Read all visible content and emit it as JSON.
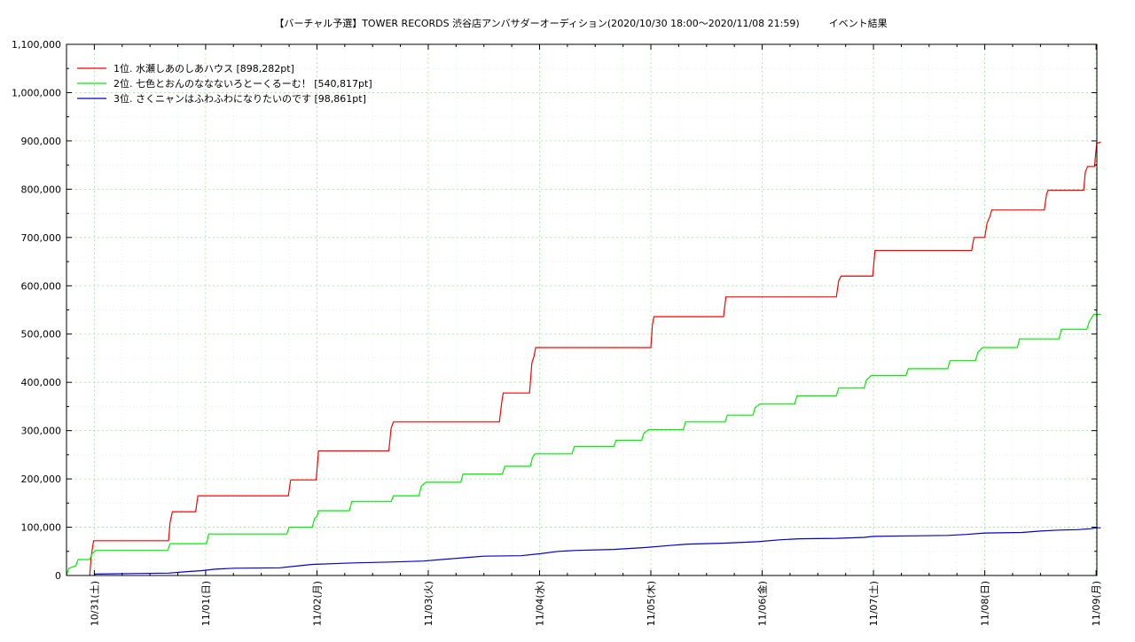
{
  "chart_data": {
    "type": "line",
    "title": "【バーチャル予選】TOWER RECORDS 渋谷店アンバサダーオーディション(2020/10/30 18:00〜2020/11/08 21:59)　　　イベント結果",
    "xlabel": "",
    "ylabel": "",
    "ylim": [
      0,
      1100000
    ],
    "xlim": [
      "2020/10/30 18:00",
      "2020/11/09 00:10"
    ],
    "grid": true,
    "legend_position": "top-left",
    "y_ticks": [
      "0",
      "100,000",
      "200,000",
      "300,000",
      "400,000",
      "500,000",
      "600,000",
      "700,000",
      "800,000",
      "900,000",
      "1,000,000",
      "1,100,000"
    ],
    "x_ticks": [
      {
        "date": "2020/10/31 00:00",
        "label": "10/31(土)"
      },
      {
        "date": "2020/11/01 00:00",
        "label": "11/01(日)"
      },
      {
        "date": "2020/11/02 00:00",
        "label": "11/02(月)"
      },
      {
        "date": "2020/11/03 00:00",
        "label": "11/03(火)"
      },
      {
        "date": "2020/11/04 00:00",
        "label": "11/04(水)"
      },
      {
        "date": "2020/11/05 00:00",
        "label": "11/05(木)"
      },
      {
        "date": "2020/11/06 00:00",
        "label": "11/06(金)"
      },
      {
        "date": "2020/11/07 00:00",
        "label": "11/07(土)"
      },
      {
        "date": "2020/11/08 00:00",
        "label": "11/08(日)"
      },
      {
        "date": "2020/11/09 00:00",
        "label": "11/09(月)"
      }
    ],
    "series": [
      {
        "name": "1位. 水瀬しあのしあハウス [898,282pt]",
        "color": "#ff0000",
        "points": [
          [
            "2020/10/30 23:00",
            0
          ],
          [
            "2020/10/30 23:20",
            40000
          ],
          [
            "2020/10/30 23:50",
            72000
          ],
          [
            "2020/10/31 16:00",
            72000
          ],
          [
            "2020/10/31 16:20",
            110000
          ],
          [
            "2020/10/31 16:50",
            132000
          ],
          [
            "2020/10/31 21:50",
            132000
          ],
          [
            "2020/10/31 22:20",
            165000
          ],
          [
            "2020/11/01 17:50",
            165000
          ],
          [
            "2020/11/01 18:20",
            198000
          ],
          [
            "2020/11/01 23:50",
            198000
          ],
          [
            "2020/11/02 00:20",
            258000
          ],
          [
            "2020/11/02 15:30",
            258000
          ],
          [
            "2020/11/02 16:00",
            305000
          ],
          [
            "2020/11/02 16:30",
            318000
          ],
          [
            "2020/11/03 15:20",
            318000
          ],
          [
            "2020/11/03 15:50",
            358000
          ],
          [
            "2020/11/03 16:10",
            378000
          ],
          [
            "2020/11/03 21:50",
            378000
          ],
          [
            "2020/11/03 22:20",
            440000
          ],
          [
            "2020/11/03 22:50",
            455000
          ],
          [
            "2020/11/03 23:10",
            472000
          ],
          [
            "2020/11/05 00:00",
            472000
          ],
          [
            "2020/11/05 00:20",
            520000
          ],
          [
            "2020/11/05 00:40",
            536000
          ],
          [
            "2020/11/05 15:40",
            536000
          ],
          [
            "2020/11/05 16:10",
            577000
          ],
          [
            "2020/11/06 16:00",
            577000
          ],
          [
            "2020/11/06 16:30",
            610000
          ],
          [
            "2020/11/06 17:00",
            620000
          ],
          [
            "2020/11/06 23:50",
            620000
          ],
          [
            "2020/11/07 00:20",
            673000
          ],
          [
            "2020/11/07 21:10",
            673000
          ],
          [
            "2020/11/07 21:40",
            700000
          ],
          [
            "2020/11/08 00:00",
            700000
          ],
          [
            "2020/11/08 00:30",
            730000
          ],
          [
            "2020/11/08 01:10",
            745000
          ],
          [
            "2020/11/08 01:30",
            757000
          ],
          [
            "2020/11/08 12:50",
            757000
          ],
          [
            "2020/11/08 13:20",
            790000
          ],
          [
            "2020/11/08 13:40",
            798000
          ],
          [
            "2020/11/08 21:20",
            798000
          ],
          [
            "2020/11/08 21:40",
            835000
          ],
          [
            "2020/11/08 22:10",
            847000
          ],
          [
            "2020/11/08 23:40",
            847000
          ],
          [
            "2020/11/08 23:55",
            875000
          ],
          [
            "2020/11/09 00:10",
            896000
          ],
          [
            "2020/11/09 00:40",
            896000
          ],
          [
            "2020/11/09 01:00",
            898282
          ]
        ]
      },
      {
        "name": "2位. 七色とおんのななないろとーくるーむ！ [540,817pt]",
        "color": "#00ee00",
        "points": [
          [
            "2020/10/30 18:00",
            0
          ],
          [
            "2020/10/30 18:30",
            15000
          ],
          [
            "2020/10/30 20:00",
            20000
          ],
          [
            "2020/10/30 20:30",
            33000
          ],
          [
            "2020/10/30 23:00",
            33000
          ],
          [
            "2020/10/30 23:30",
            45000
          ],
          [
            "2020/10/31 00:20",
            52000
          ],
          [
            "2020/10/31 15:50",
            52000
          ],
          [
            "2020/10/31 16:20",
            66000
          ],
          [
            "2020/11/01 00:10",
            66000
          ],
          [
            "2020/11/01 00:40",
            86000
          ],
          [
            "2020/11/01 17:30",
            86000
          ],
          [
            "2020/11/01 18:00",
            100000
          ],
          [
            "2020/11/01 23:00",
            100000
          ],
          [
            "2020/11/01 23:30",
            118000
          ],
          [
            "2020/11/02 00:00",
            122000
          ],
          [
            "2020/11/02 00:20",
            134000
          ],
          [
            "2020/11/02 07:00",
            134000
          ],
          [
            "2020/11/02 07:30",
            153000
          ],
          [
            "2020/11/02 16:00",
            153000
          ],
          [
            "2020/11/02 16:30",
            165000
          ],
          [
            "2020/11/02 22:00",
            165000
          ],
          [
            "2020/11/02 22:30",
            185000
          ],
          [
            "2020/11/02 23:30",
            193000
          ],
          [
            "2020/11/03 07:00",
            193000
          ],
          [
            "2020/11/03 07:30",
            210000
          ],
          [
            "2020/11/03 16:00",
            210000
          ],
          [
            "2020/11/03 16:30",
            226000
          ],
          [
            "2020/11/03 22:00",
            226000
          ],
          [
            "2020/11/03 22:30",
            245000
          ],
          [
            "2020/11/03 23:00",
            252000
          ],
          [
            "2020/11/04 07:00",
            252000
          ],
          [
            "2020/11/04 07:30",
            267000
          ],
          [
            "2020/11/04 16:00",
            267000
          ],
          [
            "2020/11/04 16:30",
            280000
          ],
          [
            "2020/11/04 22:00",
            280000
          ],
          [
            "2020/11/04 22:30",
            295000
          ],
          [
            "2020/11/04 23:30",
            302000
          ],
          [
            "2020/11/05 07:00",
            302000
          ],
          [
            "2020/11/05 07:30",
            318000
          ],
          [
            "2020/11/05 16:00",
            318000
          ],
          [
            "2020/11/05 16:30",
            332000
          ],
          [
            "2020/11/05 22:00",
            332000
          ],
          [
            "2020/11/05 22:30",
            348000
          ],
          [
            "2020/11/05 23:30",
            355000
          ],
          [
            "2020/11/06 07:00",
            355000
          ],
          [
            "2020/11/06 07:30",
            372000
          ],
          [
            "2020/11/06 16:00",
            372000
          ],
          [
            "2020/11/06 16:30",
            388000
          ],
          [
            "2020/11/06 22:00",
            388000
          ],
          [
            "2020/11/06 22:30",
            405000
          ],
          [
            "2020/11/06 23:30",
            414000
          ],
          [
            "2020/11/07 07:00",
            414000
          ],
          [
            "2020/11/07 07:30",
            428000
          ],
          [
            "2020/11/07 16:00",
            428000
          ],
          [
            "2020/11/07 16:30",
            445000
          ],
          [
            "2020/11/07 22:00",
            445000
          ],
          [
            "2020/11/07 22:30",
            462000
          ],
          [
            "2020/11/07 23:30",
            472000
          ],
          [
            "2020/11/08 07:00",
            472000
          ],
          [
            "2020/11/08 07:30",
            490000
          ],
          [
            "2020/11/08 16:00",
            490000
          ],
          [
            "2020/11/08 16:30",
            510000
          ],
          [
            "2020/11/08 22:00",
            510000
          ],
          [
            "2020/11/08 22:30",
            525000
          ],
          [
            "2020/11/08 23:30",
            540817
          ],
          [
            "2020/11/09 01:00",
            540817
          ]
        ]
      },
      {
        "name": "3位. さくニャンはふわふわになりたいのです [98,861pt]",
        "color": "#0000cc",
        "points": [
          [
            "2020/10/31 00:00",
            0
          ],
          [
            "2020/10/31 00:10",
            3000
          ],
          [
            "2020/10/31 08:00",
            4000
          ],
          [
            "2020/10/31 16:00",
            5000
          ],
          [
            "2020/10/31 20:00",
            8000
          ],
          [
            "2020/10/31 23:00",
            10000
          ],
          [
            "2020/11/01 02:00",
            13000
          ],
          [
            "2020/11/01 06:00",
            15000
          ],
          [
            "2020/11/01 16:00",
            16000
          ],
          [
            "2020/11/01 20:00",
            20000
          ],
          [
            "2020/11/01 23:00",
            23000
          ],
          [
            "2020/11/02 08:00",
            26000
          ],
          [
            "2020/11/02 16:00",
            28000
          ],
          [
            "2020/11/02 23:00",
            30000
          ],
          [
            "2020/11/03 04:00",
            34000
          ],
          [
            "2020/11/03 08:00",
            37000
          ],
          [
            "2020/11/03 12:00",
            40000
          ],
          [
            "2020/11/03 20:00",
            41000
          ],
          [
            "2020/11/04 00:00",
            45000
          ],
          [
            "2020/11/04 04:00",
            50000
          ],
          [
            "2020/11/04 08:00",
            52000
          ],
          [
            "2020/11/04 16:00",
            54000
          ],
          [
            "2020/11/04 23:00",
            58000
          ],
          [
            "2020/11/05 04:00",
            62000
          ],
          [
            "2020/11/05 08:00",
            65000
          ],
          [
            "2020/11/05 16:00",
            67000
          ],
          [
            "2020/11/05 23:00",
            70000
          ],
          [
            "2020/11/06 04:00",
            74000
          ],
          [
            "2020/11/06 08:00",
            76000
          ],
          [
            "2020/11/06 16:00",
            77000
          ],
          [
            "2020/11/06 22:00",
            79000
          ],
          [
            "2020/11/07 00:00",
            81000
          ],
          [
            "2020/11/07 08:00",
            82000
          ],
          [
            "2020/11/07 16:00",
            83000
          ],
          [
            "2020/11/07 20:00",
            85000
          ],
          [
            "2020/11/08 00:00",
            88000
          ],
          [
            "2020/11/08 08:00",
            89000
          ],
          [
            "2020/11/08 12:00",
            92000
          ],
          [
            "2020/11/08 16:00",
            94000
          ],
          [
            "2020/11/08 20:00",
            95000
          ],
          [
            "2020/11/08 23:00",
            97000
          ],
          [
            "2020/11/09 00:00",
            98861
          ],
          [
            "2020/11/09 01:00",
            98861
          ]
        ]
      }
    ]
  }
}
